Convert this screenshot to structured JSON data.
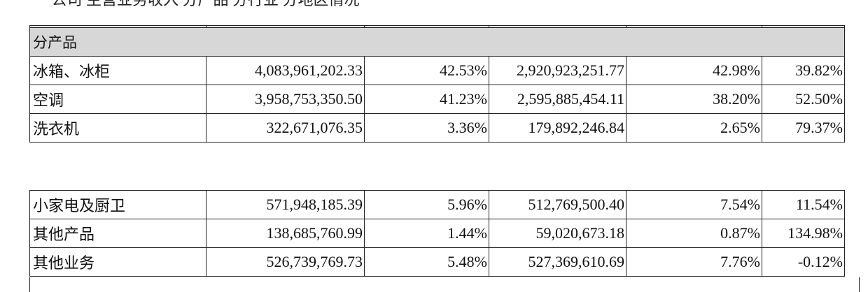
{
  "header_fragment": "一 公司 主营业务收入 分产品 分行业 分地区情况",
  "section": {
    "label": "分产品"
  },
  "top_rows": [
    {
      "name": "冰箱、冰柜",
      "revenue": "4,083,961,202.33",
      "revenue_share": "42.53%",
      "cost": "2,920,923,251.77",
      "cost_share": "42.98%",
      "change": "39.82%"
    },
    {
      "name": "空调",
      "revenue": "3,958,753,350.50",
      "revenue_share": "41.23%",
      "cost": "2,595,885,454.11",
      "cost_share": "38.20%",
      "change": "52.50%"
    },
    {
      "name": "洗衣机",
      "revenue": "322,671,076.35",
      "revenue_share": "3.36%",
      "cost": "179,892,246.84",
      "cost_share": "2.65%",
      "change": "79.37%"
    }
  ],
  "bottom_rows": [
    {
      "name": "小家电及厨卫",
      "revenue": "571,948,185.39",
      "revenue_share": "5.96%",
      "cost": "512,769,500.40",
      "cost_share": "7.54%",
      "change": "11.54%"
    },
    {
      "name": "其他产品",
      "revenue": "138,685,760.99",
      "revenue_share": "1.44%",
      "cost": "59,020,673.18",
      "cost_share": "0.87%",
      "change": "134.98%"
    },
    {
      "name": "其他业务",
      "revenue": "526,739,769.73",
      "revenue_share": "5.48%",
      "cost": "527,369,610.69",
      "cost_share": "7.76%",
      "change": "-0.12%"
    }
  ]
}
